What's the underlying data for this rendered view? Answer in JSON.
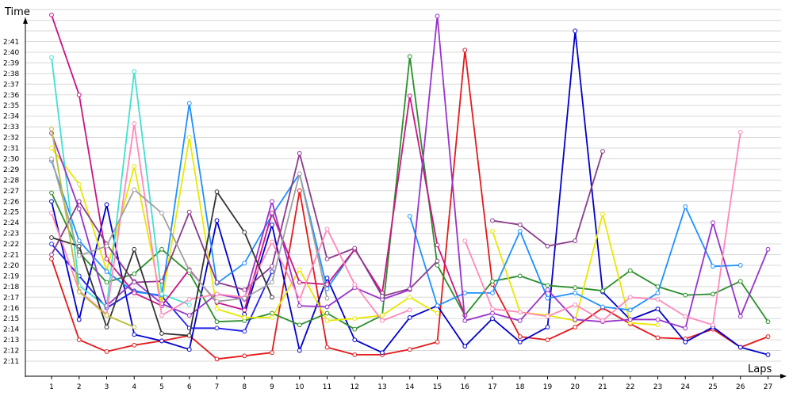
{
  "chart_data": {
    "type": "line",
    "ylabel": "Time",
    "xlabel": "Laps",
    "x": [
      1,
      2,
      3,
      4,
      5,
      6,
      7,
      8,
      9,
      10,
      11,
      12,
      13,
      14,
      15,
      16,
      17,
      18,
      19,
      20,
      21,
      22,
      23,
      24,
      25,
      26,
      27
    ],
    "y_tick_labels": [
      "2:11",
      "2:12",
      "2:13",
      "2:14",
      "2:15",
      "2:16",
      "2:17",
      "2:18",
      "2:19",
      "2:20",
      "2:21",
      "2:22",
      "2:23",
      "2:24",
      "2:25",
      "2:26",
      "2:27",
      "2:28",
      "2:29",
      "2:30",
      "2:31",
      "2:32",
      "2:33",
      "2:34",
      "2:35",
      "2:36",
      "2:37",
      "2:38",
      "2:39",
      "2:40",
      "2:41"
    ],
    "ylim_seconds": [
      130,
      152
    ],
    "grid": true,
    "series": [
      {
        "color": "#e31a1c",
        "values": [
          140.6,
          133.0,
          131.9,
          132.5,
          132.9,
          133.4,
          131.2,
          131.5,
          131.8,
          147.0,
          132.3,
          131.6,
          131.6,
          132.1,
          132.8,
          160.2,
          138.2,
          133.3,
          133.0,
          134.2,
          136.0,
          134.5,
          133.2,
          133.1,
          134.0,
          132.3,
          133.3
        ]
      },
      {
        "color": "#0000cc",
        "values": [
          146.0,
          134.9,
          145.7,
          133.5,
          132.9,
          132.1,
          144.2,
          135.4,
          143.8,
          132.0,
          138.8,
          133.0,
          131.8,
          135.1,
          136.2,
          132.4,
          135.0,
          132.8,
          134.2,
          162.0,
          137.5,
          134.9,
          135.9,
          132.8,
          134.2,
          132.3,
          131.6
        ]
      },
      {
        "color": "#2a8f2a",
        "values": [
          146.8,
          141.2,
          138.4,
          139.2,
          141.5,
          139.3,
          134.7,
          134.8,
          135.5,
          134.4,
          135.5,
          134.0,
          135.3,
          159.6,
          140.0,
          135.3,
          138.5,
          139.0,
          138.1,
          137.9,
          137.6,
          139.5,
          138.0,
          137.2,
          137.3,
          138.5,
          134.7
        ]
      },
      {
        "color": "#2222ee",
        "values": [
          142.0,
          139.0,
          136.0,
          137.6,
          137.1,
          134.1,
          134.1,
          133.8,
          139.4,
          null,
          null,
          null,
          null,
          null,
          null,
          null,
          null,
          null,
          null,
          null,
          null,
          null,
          null,
          null,
          null,
          null,
          null
        ]
      },
      {
        "color": "#e8e800",
        "values": [
          151.0,
          147.6,
          139.5,
          149.3,
          136.5,
          152.0,
          135.9,
          135.1,
          135.1,
          139.6,
          134.8,
          135.0,
          135.3,
          137.0,
          135.5,
          null,
          143.2,
          135.6,
          135.3,
          134.8,
          144.8,
          134.6,
          134.4,
          null,
          null,
          null,
          null
        ]
      },
      {
        "color": "#1e90ff",
        "values": [
          149.8,
          142.3,
          139.4,
          137.5,
          137.2,
          155.2,
          138.3,
          140.2,
          144.7,
          148.6,
          137.8,
          141.5,
          null,
          144.6,
          136.2,
          137.4,
          137.4,
          143.2,
          136.9,
          137.4,
          136.1,
          135.8,
          137.4,
          145.5,
          139.9,
          140.0,
          null
        ]
      },
      {
        "color": "#40e0d0",
        "values": [
          159.5,
          138.1,
          136.1,
          158.2,
          137.3,
          136.3,
          null,
          null,
          null,
          null,
          null,
          null,
          null,
          null,
          null,
          null,
          null,
          null,
          null,
          null,
          null,
          null,
          null,
          null,
          null,
          null,
          null
        ]
      },
      {
        "color": "#c71585",
        "values": [
          163.5,
          156.0,
          140.6,
          137.4,
          136.2,
          139.6,
          136.5,
          135.8,
          144.9,
          138.4,
          138.2,
          141.5,
          137.4,
          155.9,
          141.9,
          135.3,
          null,
          null,
          null,
          null,
          null,
          null,
          null,
          null,
          null,
          null,
          null
        ]
      },
      {
        "color": "#9932cc",
        "values": [
          152.4,
          145.3,
          136.2,
          138.5,
          136.4,
          135.3,
          137.3,
          136.8,
          146.0,
          136.2,
          136.1,
          137.9,
          136.8,
          137.7,
          163.4,
          134.8,
          135.5,
          134.8,
          137.7,
          134.9,
          134.7,
          134.9,
          134.9,
          134.1,
          144.0,
          135.2,
          141.5
        ]
      },
      {
        "color": "#8b3a8b",
        "values": [
          141.0,
          146.0,
          142.0,
          138.4,
          138.5,
          145.0,
          138.4,
          137.7,
          139.9,
          150.5,
          140.6,
          141.6,
          137.1,
          137.8,
          140.4,
          null,
          144.2,
          143.8,
          141.8,
          142.3,
          150.7,
          null,
          null,
          null,
          null,
          null,
          null
        ]
      },
      {
        "color": "#ff88bb",
        "values": [
          144.9,
          137.6,
          135.4,
          153.3,
          135.3,
          136.8,
          137.3,
          137.0,
          142.2,
          136.8,
          143.4,
          138.2,
          134.8,
          135.8,
          null,
          142.3,
          135.9,
          135.6,
          135.2,
          136.3,
          134.8,
          137.0,
          136.8,
          135.2,
          134.4,
          152.5,
          null
        ]
      },
      {
        "color": "#333333",
        "values": [
          142.6,
          141.8,
          134.2,
          141.5,
          133.6,
          133.4,
          146.9,
          143.1,
          137.0,
          null,
          null,
          null,
          null,
          null,
          null,
          null,
          null,
          null,
          null,
          null,
          null,
          null,
          null,
          null,
          null,
          null,
          null
        ]
      },
      {
        "color": "#a0a0a0",
        "values": [
          150.0,
          140.9,
          141.8,
          147.1,
          144.9,
          139.5,
          136.6,
          136.9,
          138.4,
          148.6,
          136.9,
          null,
          null,
          null,
          null,
          null,
          null,
          null,
          null,
          null,
          null,
          null,
          null,
          null,
          null,
          null,
          null
        ]
      },
      {
        "color": "#bcbc3a",
        "values": [
          152.8,
          137.5,
          135.3,
          134.2,
          null,
          null,
          null,
          null,
          null,
          null,
          null,
          null,
          null,
          null,
          null,
          null,
          null,
          null,
          null,
          null,
          null,
          null,
          null,
          null,
          null,
          null,
          null
        ]
      }
    ]
  }
}
